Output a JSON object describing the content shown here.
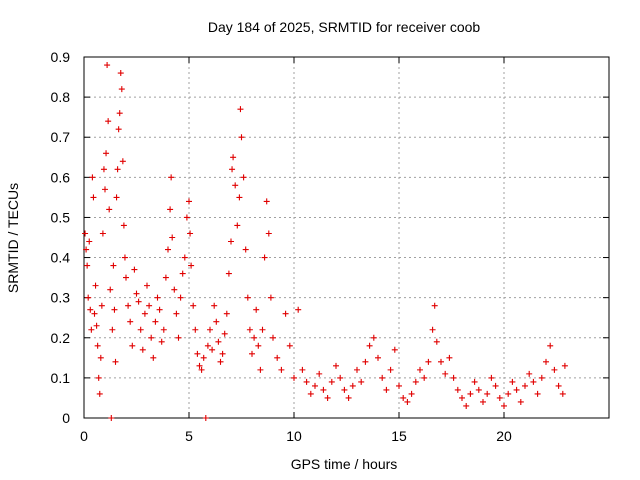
{
  "chart_data": {
    "type": "scatter",
    "title": "Day 184 of 2025, SRMTID for receiver coob",
    "xlabel": "GPS time / hours",
    "ylabel": "SRMTID / TECUs",
    "xlim": [
      0,
      25
    ],
    "ylim": [
      0,
      0.9
    ],
    "xticks": [
      0,
      5,
      10,
      15,
      20
    ],
    "xtick_labels": [
      "0",
      "5",
      "10",
      "15",
      "20"
    ],
    "yticks": [
      0,
      0.1,
      0.2,
      0.3,
      0.4,
      0.5,
      0.6,
      0.7,
      0.8,
      0.9
    ],
    "ytick_labels": [
      "0",
      "0.1",
      "0.2",
      "0.3",
      "0.4",
      "0.5",
      "0.6",
      "0.7",
      "0.8",
      "0.9"
    ],
    "grid": true,
    "marker": "+",
    "series": [
      {
        "name": "SRMTID",
        "color": "#e00000",
        "points": [
          [
            0.05,
            0.46
          ],
          [
            0.1,
            0.42
          ],
          [
            0.15,
            0.38
          ],
          [
            0.2,
            0.3
          ],
          [
            0.25,
            0.44
          ],
          [
            0.3,
            0.27
          ],
          [
            0.35,
            0.22
          ],
          [
            0.4,
            0.6
          ],
          [
            0.45,
            0.55
          ],
          [
            0.5,
            0.26
          ],
          [
            0.55,
            0.33
          ],
          [
            0.6,
            0.23
          ],
          [
            0.65,
            0.18
          ],
          [
            0.7,
            0.1
          ],
          [
            0.75,
            0.06
          ],
          [
            0.8,
            0.15
          ],
          [
            0.85,
            0.28
          ],
          [
            0.9,
            0.46
          ],
          [
            0.95,
            0.62
          ],
          [
            1.0,
            0.57
          ],
          [
            1.05,
            0.66
          ],
          [
            1.1,
            0.88
          ],
          [
            1.15,
            0.74
          ],
          [
            1.2,
            0.52
          ],
          [
            1.25,
            0.32
          ],
          [
            1.3,
            0.0
          ],
          [
            1.35,
            0.22
          ],
          [
            1.4,
            0.38
          ],
          [
            1.45,
            0.27
          ],
          [
            1.5,
            0.14
          ],
          [
            1.55,
            0.55
          ],
          [
            1.6,
            0.62
          ],
          [
            1.65,
            0.72
          ],
          [
            1.7,
            0.76
          ],
          [
            1.75,
            0.86
          ],
          [
            1.8,
            0.82
          ],
          [
            1.85,
            0.64
          ],
          [
            1.9,
            0.48
          ],
          [
            1.95,
            0.4
          ],
          [
            2.0,
            0.35
          ],
          [
            2.1,
            0.28
          ],
          [
            2.2,
            0.24
          ],
          [
            2.3,
            0.18
          ],
          [
            2.4,
            0.37
          ],
          [
            2.5,
            0.31
          ],
          [
            2.6,
            0.29
          ],
          [
            2.7,
            0.22
          ],
          [
            2.8,
            0.17
          ],
          [
            2.9,
            0.26
          ],
          [
            3.0,
            0.33
          ],
          [
            3.1,
            0.28
          ],
          [
            3.2,
            0.2
          ],
          [
            3.3,
            0.15
          ],
          [
            3.4,
            0.24
          ],
          [
            3.5,
            0.3
          ],
          [
            3.6,
            0.27
          ],
          [
            3.7,
            0.19
          ],
          [
            3.8,
            0.22
          ],
          [
            3.9,
            0.35
          ],
          [
            4.0,
            0.42
          ],
          [
            4.1,
            0.52
          ],
          [
            4.15,
            0.6
          ],
          [
            4.2,
            0.45
          ],
          [
            4.3,
            0.32
          ],
          [
            4.4,
            0.26
          ],
          [
            4.5,
            0.2
          ],
          [
            4.6,
            0.3
          ],
          [
            4.7,
            0.36
          ],
          [
            4.8,
            0.4
          ],
          [
            4.9,
            0.5
          ],
          [
            5.0,
            0.54
          ],
          [
            5.05,
            0.46
          ],
          [
            5.1,
            0.38
          ],
          [
            5.2,
            0.28
          ],
          [
            5.3,
            0.22
          ],
          [
            5.4,
            0.16
          ],
          [
            5.5,
            0.13
          ],
          [
            5.6,
            0.12
          ],
          [
            5.7,
            0.15
          ],
          [
            5.8,
            0.0
          ],
          [
            5.9,
            0.18
          ],
          [
            6.0,
            0.22
          ],
          [
            6.1,
            0.17
          ],
          [
            6.2,
            0.28
          ],
          [
            6.3,
            0.24
          ],
          [
            6.4,
            0.19
          ],
          [
            6.5,
            0.14
          ],
          [
            6.6,
            0.16
          ],
          [
            6.7,
            0.21
          ],
          [
            6.8,
            0.26
          ],
          [
            6.9,
            0.36
          ],
          [
            7.0,
            0.44
          ],
          [
            7.05,
            0.62
          ],
          [
            7.1,
            0.65
          ],
          [
            7.2,
            0.58
          ],
          [
            7.3,
            0.48
          ],
          [
            7.4,
            0.55
          ],
          [
            7.45,
            0.77
          ],
          [
            7.5,
            0.7
          ],
          [
            7.6,
            0.6
          ],
          [
            7.7,
            0.42
          ],
          [
            7.8,
            0.3
          ],
          [
            7.9,
            0.22
          ],
          [
            8.0,
            0.16
          ],
          [
            8.1,
            0.2
          ],
          [
            8.2,
            0.27
          ],
          [
            8.3,
            0.18
          ],
          [
            8.4,
            0.12
          ],
          [
            8.5,
            0.22
          ],
          [
            8.6,
            0.4
          ],
          [
            8.7,
            0.54
          ],
          [
            8.8,
            0.46
          ],
          [
            8.9,
            0.3
          ],
          [
            9.0,
            0.2
          ],
          [
            9.2,
            0.15
          ],
          [
            9.4,
            0.12
          ],
          [
            9.6,
            0.26
          ],
          [
            9.8,
            0.18
          ],
          [
            10.0,
            0.1
          ],
          [
            10.2,
            0.27
          ],
          [
            10.4,
            0.12
          ],
          [
            10.6,
            0.09
          ],
          [
            10.8,
            0.06
          ],
          [
            11.0,
            0.08
          ],
          [
            11.2,
            0.11
          ],
          [
            11.4,
            0.07
          ],
          [
            11.6,
            0.05
          ],
          [
            11.8,
            0.09
          ],
          [
            12.0,
            0.13
          ],
          [
            12.2,
            0.1
          ],
          [
            12.4,
            0.07
          ],
          [
            12.6,
            0.05
          ],
          [
            12.8,
            0.08
          ],
          [
            13.0,
            0.12
          ],
          [
            13.2,
            0.09
          ],
          [
            13.4,
            0.14
          ],
          [
            13.6,
            0.18
          ],
          [
            13.8,
            0.2
          ],
          [
            14.0,
            0.15
          ],
          [
            14.2,
            0.1
          ],
          [
            14.4,
            0.07
          ],
          [
            14.6,
            0.12
          ],
          [
            14.8,
            0.17
          ],
          [
            15.0,
            0.08
          ],
          [
            15.2,
            0.05
          ],
          [
            15.4,
            0.04
          ],
          [
            15.6,
            0.06
          ],
          [
            15.8,
            0.09
          ],
          [
            16.0,
            0.12
          ],
          [
            16.2,
            0.1
          ],
          [
            16.4,
            0.14
          ],
          [
            16.6,
            0.22
          ],
          [
            16.7,
            0.28
          ],
          [
            16.8,
            0.19
          ],
          [
            17.0,
            0.14
          ],
          [
            17.2,
            0.11
          ],
          [
            17.4,
            0.15
          ],
          [
            17.6,
            0.1
          ],
          [
            17.8,
            0.07
          ],
          [
            18.0,
            0.05
          ],
          [
            18.2,
            0.03
          ],
          [
            18.4,
            0.06
          ],
          [
            18.6,
            0.09
          ],
          [
            18.8,
            0.07
          ],
          [
            19.0,
            0.04
          ],
          [
            19.2,
            0.06
          ],
          [
            19.4,
            0.1
          ],
          [
            19.6,
            0.08
          ],
          [
            19.8,
            0.05
          ],
          [
            20.0,
            0.03
          ],
          [
            20.2,
            0.06
          ],
          [
            20.4,
            0.09
          ],
          [
            20.6,
            0.07
          ],
          [
            20.8,
            0.04
          ],
          [
            21.0,
            0.08
          ],
          [
            21.2,
            0.11
          ],
          [
            21.4,
            0.09
          ],
          [
            21.6,
            0.06
          ],
          [
            21.8,
            0.1
          ],
          [
            22.0,
            0.14
          ],
          [
            22.2,
            0.18
          ],
          [
            22.4,
            0.12
          ],
          [
            22.6,
            0.08
          ],
          [
            22.8,
            0.06
          ],
          [
            22.9,
            0.13
          ]
        ]
      }
    ]
  }
}
